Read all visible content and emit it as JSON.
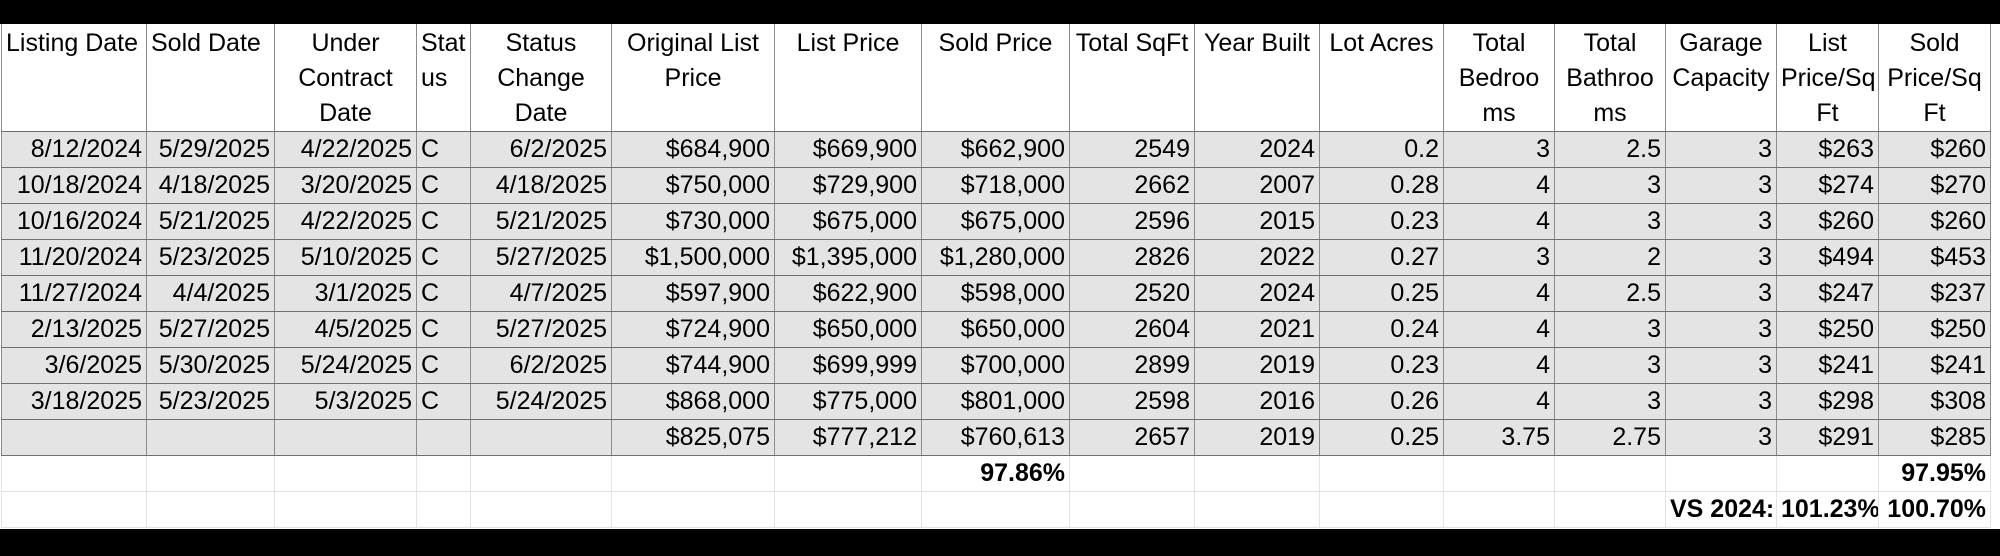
{
  "table": {
    "headers": [
      "Listing Date",
      "Sold Date",
      "Under Contract Date",
      "Stat us",
      "Status Change Date",
      "Original List Price",
      "List Price",
      "Sold Price",
      "Total SqFt",
      "Year Built",
      "Lot Acres",
      "Total Bedroo ms",
      "Total Bathroo ms",
      "Garage Capacity",
      "List Price/Sq Ft",
      "Sold Price/Sq Ft"
    ],
    "rows": [
      [
        "8/12/2024",
        "5/29/2025",
        "4/22/2025",
        "C",
        "6/2/2025",
        "$684,900",
        "$669,900",
        "$662,900",
        "2549",
        "2024",
        "0.2",
        "3",
        "2.5",
        "3",
        "$263",
        "$260"
      ],
      [
        "10/18/2024",
        "4/18/2025",
        "3/20/2025",
        "C",
        "4/18/2025",
        "$750,000",
        "$729,900",
        "$718,000",
        "2662",
        "2007",
        "0.28",
        "4",
        "3",
        "3",
        "$274",
        "$270"
      ],
      [
        "10/16/2024",
        "5/21/2025",
        "4/22/2025",
        "C",
        "5/21/2025",
        "$730,000",
        "$675,000",
        "$675,000",
        "2596",
        "2015",
        "0.23",
        "4",
        "3",
        "3",
        "$260",
        "$260"
      ],
      [
        "11/20/2024",
        "5/23/2025",
        "5/10/2025",
        "C",
        "5/27/2025",
        "$1,500,000",
        "$1,395,000",
        "$1,280,000",
        "2826",
        "2022",
        "0.27",
        "3",
        "2",
        "3",
        "$494",
        "$453"
      ],
      [
        "11/27/2024",
        "4/4/2025",
        "3/1/2025",
        "C",
        "4/7/2025",
        "$597,900",
        "$622,900",
        "$598,000",
        "2520",
        "2024",
        "0.25",
        "4",
        "2.5",
        "3",
        "$247",
        "$237"
      ],
      [
        "2/13/2025",
        "5/27/2025",
        "4/5/2025",
        "C",
        "5/27/2025",
        "$724,900",
        "$650,000",
        "$650,000",
        "2604",
        "2021",
        "0.24",
        "4",
        "3",
        "3",
        "$250",
        "$250"
      ],
      [
        "3/6/2025",
        "5/30/2025",
        "5/24/2025",
        "C",
        "6/2/2025",
        "$744,900",
        "$699,999",
        "$700,000",
        "2899",
        "2019",
        "0.23",
        "4",
        "3",
        "3",
        "$241",
        "$241"
      ],
      [
        "3/18/2025",
        "5/23/2025",
        "5/3/2025",
        "C",
        "5/24/2025",
        "$868,000",
        "$775,000",
        "$801,000",
        "2598",
        "2016",
        "0.26",
        "4",
        "3",
        "3",
        "$298",
        "$308"
      ],
      [
        "",
        "",
        "",
        "",
        "",
        "$825,075",
        "$777,212",
        "$760,613",
        "2657",
        "2019",
        "0.25",
        "3.75",
        "2.75",
        "3",
        "$291",
        "$285"
      ]
    ],
    "summary_rows": [
      [
        "",
        "",
        "",
        "",
        "",
        "",
        "",
        "97.86%",
        "",
        "",
        "",
        "",
        "",
        "",
        "",
        "97.95%"
      ],
      [
        "",
        "",
        "",
        "",
        "",
        "",
        "",
        "",
        "",
        "",
        "",
        "",
        "",
        "VS 2024:",
        "101.23%",
        "100.70%"
      ]
    ]
  }
}
